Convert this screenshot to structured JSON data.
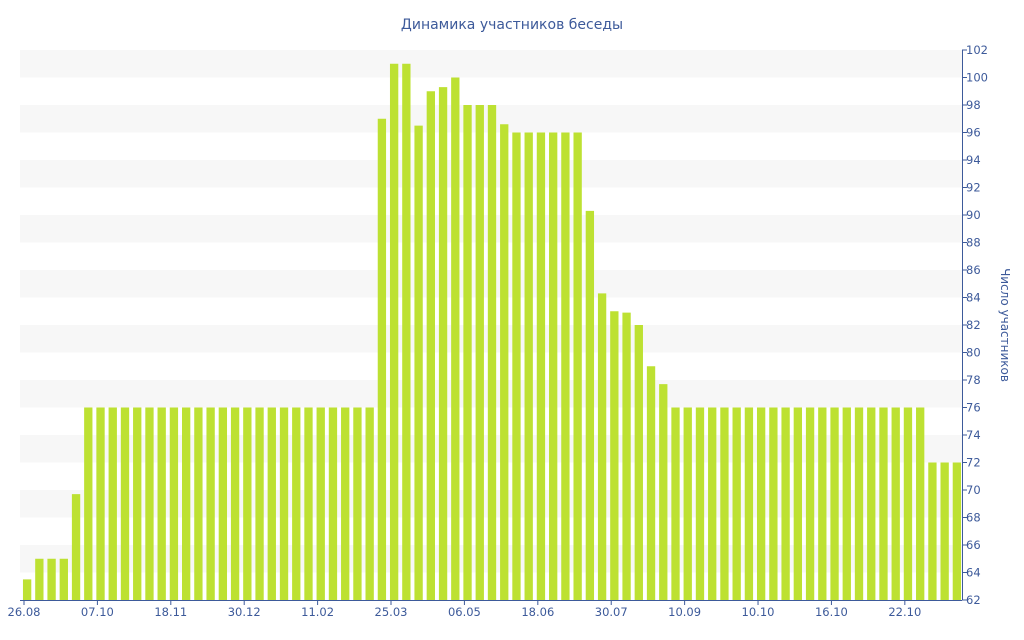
{
  "chart_data": {
    "type": "bar",
    "title": "Динамика участников беседы",
    "xlabel": "",
    "ylabel": "Число участников",
    "ylim": [
      62,
      102
    ],
    "y_ticks": [
      62,
      64,
      66,
      68,
      70,
      72,
      74,
      76,
      78,
      80,
      82,
      84,
      86,
      88,
      90,
      92,
      94,
      96,
      98,
      100,
      102
    ],
    "x_tick_labels": [
      {
        "index": 0,
        "label": "26.08"
      },
      {
        "index": 6,
        "label": "07.10"
      },
      {
        "index": 12,
        "label": "18.11"
      },
      {
        "index": 18,
        "label": "30.12"
      },
      {
        "index": 24,
        "label": "11.02"
      },
      {
        "index": 30,
        "label": "25.03"
      },
      {
        "index": 36,
        "label": "06.05"
      },
      {
        "index": 42,
        "label": "18.06"
      },
      {
        "index": 48,
        "label": "30.07"
      },
      {
        "index": 54,
        "label": "10.09"
      },
      {
        "index": 60,
        "label": "10.10"
      },
      {
        "index": 66,
        "label": "16.10"
      },
      {
        "index": 72,
        "label": "22.10"
      }
    ],
    "values": [
      63.5,
      65,
      65,
      65,
      69.7,
      76,
      76,
      76,
      76,
      76,
      76,
      76,
      76,
      76,
      76,
      76,
      76,
      76,
      76,
      76,
      76,
      76,
      76,
      76,
      76,
      76,
      76,
      76,
      76,
      97,
      101,
      101,
      96.5,
      99,
      99.3,
      100,
      98,
      98,
      98,
      96.6,
      96,
      96,
      96,
      96,
      96,
      96,
      90.3,
      84.3,
      83,
      82.9,
      82,
      79,
      77.7,
      76,
      76,
      76,
      76,
      76,
      76,
      76,
      76,
      76,
      76,
      76,
      76,
      76,
      76,
      76,
      76,
      76,
      76,
      76,
      76,
      76,
      72,
      72,
      72
    ],
    "bar_color": "#bde132",
    "grid": "alternating horizontal bands",
    "y_axis_side": "right"
  }
}
